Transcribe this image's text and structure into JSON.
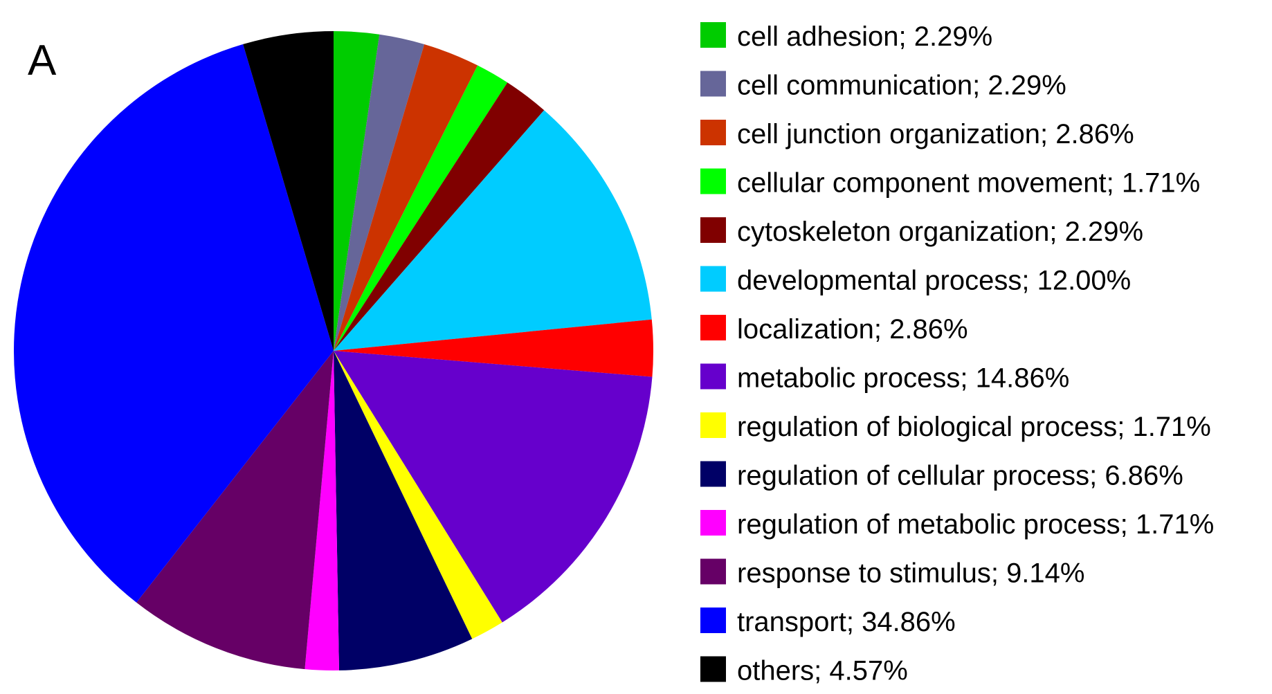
{
  "panel_label": "A",
  "chart_data": {
    "type": "pie",
    "start_angle_deg": 0,
    "direction": "clockwise",
    "legend_position": "right",
    "slices": [
      {
        "label": "cell adhesion",
        "value": 2.29,
        "legend": "cell adhesion; 2.29%",
        "color": "#00cc00"
      },
      {
        "label": "cell communication",
        "value": 2.29,
        "legend": "cell communication; 2.29%",
        "color": "#666699"
      },
      {
        "label": "cell junction organization",
        "value": 2.86,
        "legend": "cell junction organization; 2.86%",
        "color": "#cc3300"
      },
      {
        "label": "cellular component movement",
        "value": 1.71,
        "legend": "cellular component movement; 1.71%",
        "color": "#00ff00"
      },
      {
        "label": "cytoskeleton organization",
        "value": 2.29,
        "legend": "cytoskeleton organization; 2.29%",
        "color": "#800000"
      },
      {
        "label": "developmental process",
        "value": 12.0,
        "legend": "developmental process; 12.00%",
        "color": "#00ccff"
      },
      {
        "label": "localization",
        "value": 2.86,
        "legend": "localization; 2.86%",
        "color": "#ff0000"
      },
      {
        "label": "metabolic process",
        "value": 14.86,
        "legend": "metabolic process; 14.86%",
        "color": "#6600cc"
      },
      {
        "label": "regulation of biological process",
        "value": 1.71,
        "legend": "regulation of biological process; 1.71%",
        "color": "#ffff00"
      },
      {
        "label": "regulation of cellular process",
        "value": 6.86,
        "legend": "regulation of cellular process; 6.86%",
        "color": "#000066"
      },
      {
        "label": "regulation of metabolic process",
        "value": 1.71,
        "legend": "regulation of metabolic process; 1.71%",
        "color": "#ff00ff"
      },
      {
        "label": "response to stimulus",
        "value": 9.14,
        "legend": "response to stimulus; 9.14%",
        "color": "#660066"
      },
      {
        "label": "transport",
        "value": 34.86,
        "legend": "transport; 34.86%",
        "color": "#0000ff"
      },
      {
        "label": "others",
        "value": 4.57,
        "legend": "others; 4.57%",
        "color": "#000000"
      }
    ]
  }
}
